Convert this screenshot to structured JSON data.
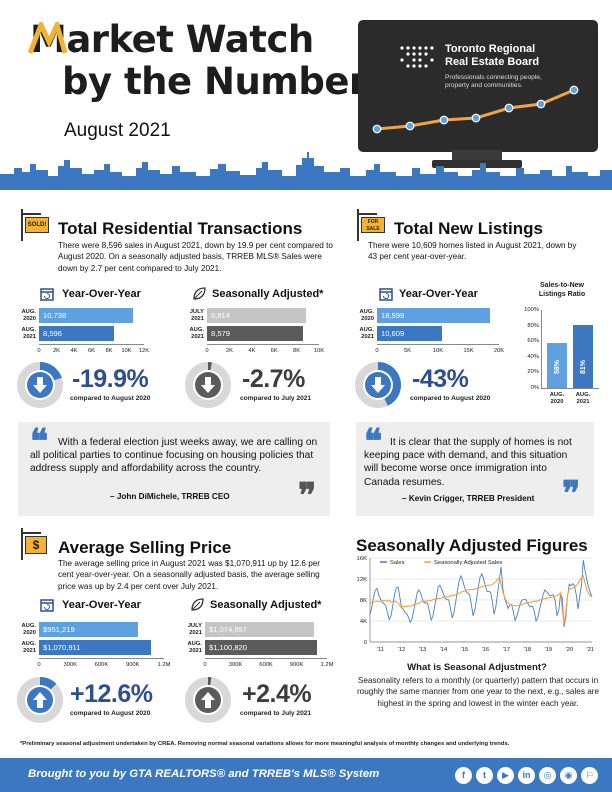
{
  "header": {
    "title_line1": "Market Watch",
    "title_line2": "by the Numbers",
    "month": "August 2021",
    "board_name_line1": "Toronto Regional",
    "board_name_line2": "Real Estate Board",
    "board_tagline_line1": "Professionals connecting people,",
    "board_tagline_line2": "property and communities."
  },
  "transactions": {
    "sign_label": "SOLD!",
    "title": "Total Residential Transactions",
    "body": "There were 8,596 sales in August 2021, down by 19.9 per cent compared to August 2020. On a seasonally adjusted basis, TRREB MLS® Sales were down by 2.7 per cent compared to July 2021.",
    "yoy": {
      "title": "Year-Over-Year",
      "bars": [
        {
          "label1": "AUG.",
          "label2": "2020",
          "value_text": "10,738",
          "value": 10738
        },
        {
          "label1": "AUG.",
          "label2": "2021",
          "value_text": "8,596",
          "value": 8596
        }
      ],
      "ticks": [
        "0",
        "2K",
        "4K",
        "6K",
        "8K",
        "10K",
        "12K"
      ],
      "max": 12000,
      "pct": "-19.9%",
      "compare": "compared to August 2020",
      "gauge_fraction": 0.199
    },
    "sa": {
      "title": "Seasonally Adjusted*",
      "bars": [
        {
          "label1": "JULY",
          "label2": "2021",
          "value_text": "8,814",
          "value": 8814
        },
        {
          "label1": "AUG.",
          "label2": "2021",
          "value_text": "8,579",
          "value": 8579
        }
      ],
      "ticks": [
        "0",
        "2K",
        "4K",
        "6K",
        "8K",
        "10K"
      ],
      "max": 10000,
      "pct": "-2.7%",
      "compare": "compared to July 2021",
      "gauge_fraction": 0.027
    }
  },
  "new_listings": {
    "sign_label": "FOR SALE",
    "title": "Total New Listings",
    "body": "There were 10,609 homes listed in August 2021, down by 43 per cent year-over-year.",
    "yoy": {
      "title": "Year-Over-Year",
      "bars": [
        {
          "label1": "AUG.",
          "label2": "2020",
          "value_text": "18,599",
          "value": 18599
        },
        {
          "label1": "AUG.",
          "label2": "2021",
          "value_text": "10,609",
          "value": 10609
        }
      ],
      "ticks": [
        "0",
        "5K",
        "10K",
        "15K",
        "20K"
      ],
      "max": 20000,
      "pct": "-43%",
      "compare": "compared to August 2020",
      "gauge_fraction": 0.43
    },
    "ratio": {
      "title_line1": "Sales-to-New",
      "title_line2": "Listings Ratio",
      "ticks": [
        "0%",
        "20%",
        "40%",
        "60%",
        "80%",
        "100%"
      ],
      "bars": [
        {
          "label1": "AUG.",
          "label2": "2020",
          "value_text": "58%",
          "value": 58
        },
        {
          "label1": "AUG.",
          "label2": "2021",
          "value_text": "81%",
          "value": 81
        }
      ]
    }
  },
  "quote1": {
    "text": "With a federal election just weeks away, we are calling on all political parties to continue focusing on housing policies that address supply and affordability across the country.",
    "by": "– John DiMichele, TRREB CEO"
  },
  "quote2": {
    "text": "It is clear that the supply of homes is not keeping pace with demand, and this situation will become worse once immigration into Canada resumes.",
    "by": "– Kevin Crigger, TRREB President"
  },
  "price": {
    "sign_label": "$",
    "title": "Average Selling Price",
    "body": "The average selling price in August 2021 was $1,070,911 up by 12.6 per cent year-over-year. On a seasonally adjusted basis, the average selling price was up by 2.4 per cent over July 2021.",
    "yoy": {
      "title": "Year-Over-Year",
      "bars": [
        {
          "label1": "AUG.",
          "label2": "2020",
          "value_text": "$951,219",
          "value": 951219
        },
        {
          "label1": "AUG.",
          "label2": "2021",
          "value_text": "$1,070,911",
          "value": 1070911
        }
      ],
      "ticks": [
        "0",
        "300K",
        "600K",
        "900K",
        "1.2M"
      ],
      "max": 1200000,
      "pct": "+12.6%",
      "compare": "compared to August 2020",
      "gauge_fraction": 0.126
    },
    "sa": {
      "title": "Seasonally Adjusted*",
      "bars": [
        {
          "label1": "JULY",
          "label2": "2021",
          "value_text": "$1,074,957",
          "value": 1074957
        },
        {
          "label1": "AUG.",
          "label2": "2021",
          "value_text": "$1,100,820",
          "value": 1100820
        }
      ],
      "ticks": [
        "0",
        "300K",
        "600K",
        "900K",
        "1.2M"
      ],
      "max": 1200000,
      "pct": "+2.4%",
      "compare": "compared to July 2021",
      "gauge_fraction": 0.024
    }
  },
  "sa_figures": {
    "title": "Seasonally Adjusted Figures",
    "subtitle": "What is Seasonal Adjustment?",
    "body": "Seasonality refers to a monthly (or quarterly) pattern that occurs in roughly the same manner from one year to the next, e.g., sales are highest in the spring and lowest in the winter each year."
  },
  "chart_data": {
    "type": "line",
    "title": "",
    "xlabel": "",
    "ylabel": "",
    "ylim": [
      0,
      16000
    ],
    "y_ticks": [
      "0",
      "4K",
      "8K",
      "12K",
      "16K"
    ],
    "x_ticks": [
      "'11",
      "'12",
      "'13",
      "'14",
      "'15",
      "'16",
      "'17",
      "'18",
      "'19",
      "'20",
      "'21"
    ],
    "legend": "top",
    "grid": true,
    "series": [
      {
        "name": "Sales",
        "color": "#4a7fc4",
        "values": [
          5200,
          6500,
          8500,
          9800,
          10200,
          9000,
          8200,
          7600,
          7300,
          7000,
          5600,
          4300,
          5000,
          6800,
          9000,
          10300,
          10500,
          8700,
          6600,
          6300,
          5600,
          5400,
          4700,
          3700,
          4400,
          6000,
          7600,
          9400,
          9900,
          9300,
          8200,
          7400,
          7500,
          7300,
          5800,
          4200,
          4900,
          6800,
          8500,
          10500,
          10800,
          10100,
          9200,
          8300,
          8100,
          8000,
          6500,
          4600,
          5600,
          7600,
          9800,
          11600,
          12600,
          11800,
          10500,
          9600,
          9300,
          9000,
          7100,
          5000,
          6200,
          8200,
          10600,
          12400,
          13000,
          12000,
          10600,
          9600,
          9600,
          9500,
          7600,
          5300,
          6800,
          9300,
          11900,
          14300,
          10100,
          8300,
          7400,
          6400,
          7100,
          7100,
          5800,
          4100,
          4900,
          6100,
          7400,
          8000,
          8100,
          8200,
          7500,
          6900,
          6700,
          6800,
          5800,
          4000,
          4600,
          6200,
          7600,
          9000,
          9900,
          9600,
          9200,
          8800,
          8900,
          9000,
          7800,
          5000,
          6000,
          9100,
          8500,
          2900,
          4600,
          8700,
          11000,
          10700,
          11100,
          10700,
          8900,
          6300,
          8700,
          10900,
          15600,
          13600,
          11900,
          10500,
          9400,
          8600
        ]
      },
      {
        "name": "Seasonally Adjusted Sales",
        "color": "#f0a342",
        "values": [
          7400,
          7500,
          7600,
          7700,
          7800,
          7700,
          7800,
          7900,
          7800,
          7900,
          7800,
          7900,
          7600,
          7700,
          7800,
          7700,
          7500,
          7000,
          6500,
          6800,
          6700,
          6800,
          6900,
          6800,
          7000,
          7100,
          7200,
          7300,
          7400,
          7600,
          7800,
          7700,
          7800,
          7800,
          7900,
          7900,
          8100,
          8200,
          8300,
          8300,
          8300,
          8400,
          8500,
          8600,
          8600,
          8700,
          8800,
          8800,
          8900,
          9000,
          9100,
          9300,
          9500,
          9600,
          9700,
          9800,
          9900,
          10000,
          10000,
          10000,
          10100,
          10200,
          10300,
          10400,
          10500,
          10600,
          10700,
          10800,
          10800,
          10800,
          11000,
          11200,
          11500,
          12000,
          12300,
          11000,
          9500,
          8500,
          7800,
          7500,
          7200,
          7100,
          7000,
          6900,
          6900,
          7000,
          7000,
          7100,
          7300,
          7400,
          7500,
          7500,
          7600,
          7700,
          7800,
          7700,
          7900,
          8000,
          8100,
          8200,
          8300,
          8300,
          8400,
          8500,
          8500,
          8600,
          8700,
          8900,
          9000,
          9400,
          6200,
          3400,
          5600,
          8800,
          10200,
          10100,
          10300,
          10400,
          10700,
          11200,
          11800,
          12200,
          12600,
          11300,
          9900,
          9300,
          8800,
          8600
        ]
      }
    ]
  },
  "footnote": "*Preliminary seasonal adjustment undertaken by CREA. Removing normal seasonal variations allows for more meaningful analysis of monthly changes and underlying trends.",
  "footer": {
    "text": "Brought to you by GTA REALTORS® and TRREB's MLS® System",
    "icons": [
      "f",
      "t",
      "▶",
      "in",
      "◎",
      "◉",
      "⚐"
    ]
  },
  "colors": {
    "blue": "#3c77c2",
    "light_blue": "#5ea0e0",
    "gray": "#b5b5b5",
    "dark_gray": "#5b5b5b",
    "navy": "#2d4e91",
    "orange": "#f0a342"
  }
}
